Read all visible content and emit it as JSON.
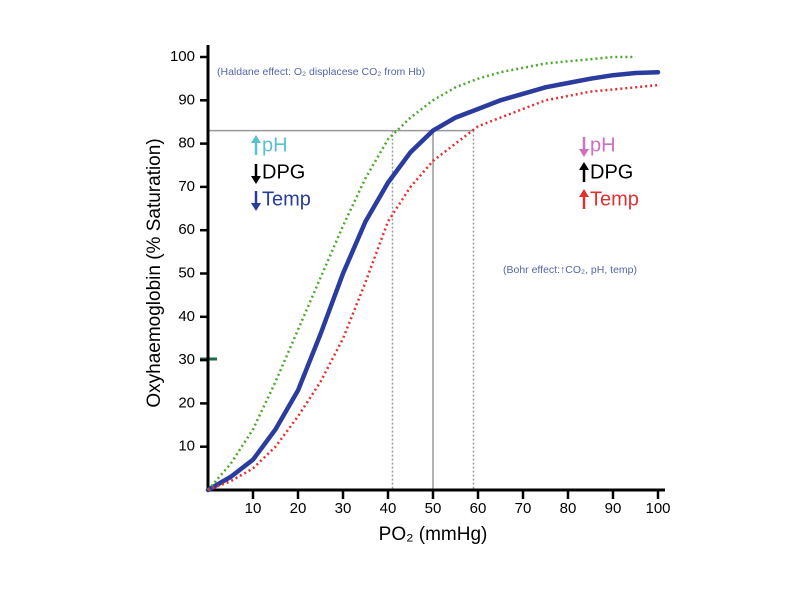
{
  "chart_data": {
    "type": "line",
    "x_label": "PO₂ (mmHg)",
    "y_label": "Oxyhaemoglobin (% Saturation)",
    "x": [
      0,
      5,
      10,
      15,
      20,
      25,
      30,
      35,
      40,
      45,
      50,
      55,
      60,
      65,
      70,
      75,
      80,
      85,
      90,
      95,
      100
    ],
    "series": [
      {
        "color": "#2a3c9e",
        "style": "solid",
        "values": [
          0,
          3,
          7,
          14,
          23,
          36,
          50,
          62,
          71,
          78,
          83,
          86,
          88,
          90,
          91.5,
          93,
          94,
          95,
          95.8,
          96.3,
          96.5
        ]
      },
      {
        "color": "#4aaa2a",
        "style": "dotted",
        "values": [
          0,
          6,
          14,
          25,
          37,
          49,
          61,
          72,
          81,
          86,
          90,
          93,
          95,
          96.5,
          97.5,
          98.5,
          99,
          99.5,
          100,
          100,
          null
        ]
      },
      {
        "color": "#e03030",
        "style": "dotted",
        "values": [
          0,
          2,
          5,
          10,
          17,
          25,
          35,
          48,
          62,
          70,
          76,
          80,
          84,
          86,
          88,
          90,
          91,
          92,
          92.5,
          93,
          93.5
        ]
      }
    ],
    "reference": {
      "y": 83,
      "x": [
        41,
        50,
        59
      ]
    },
    "xlim": [
      0,
      100
    ],
    "ylim": [
      0,
      100
    ],
    "xticks": [
      10,
      20,
      30,
      40,
      50,
      60,
      70,
      80,
      90,
      100
    ],
    "yticks": [
      10,
      20,
      30,
      40,
      50,
      60,
      70,
      80,
      90,
      100
    ],
    "annotations": [
      {
        "text": "(Haldane effect: O₂ displacese CO₂ from Hb)",
        "color": "#5566aa"
      },
      {
        "text": "(Bohr effect:↑CO₂, pH, temp)",
        "color": "#5566aa"
      }
    ],
    "left_factors": [
      {
        "text": "pH",
        "color": "#5bc0d0",
        "arrow": "up"
      },
      {
        "text": "DPG",
        "color": "#000000",
        "arrow": "down"
      },
      {
        "text": "Temp",
        "color": "#2a3c9e",
        "arrow": "down"
      }
    ],
    "right_factors": [
      {
        "text": "pH",
        "color": "#d070c0",
        "arrow": "down"
      },
      {
        "text": "DPG",
        "color": "#000000",
        "arrow": "up"
      },
      {
        "text": "Temp",
        "color": "#e03030",
        "arrow": "up"
      }
    ]
  }
}
